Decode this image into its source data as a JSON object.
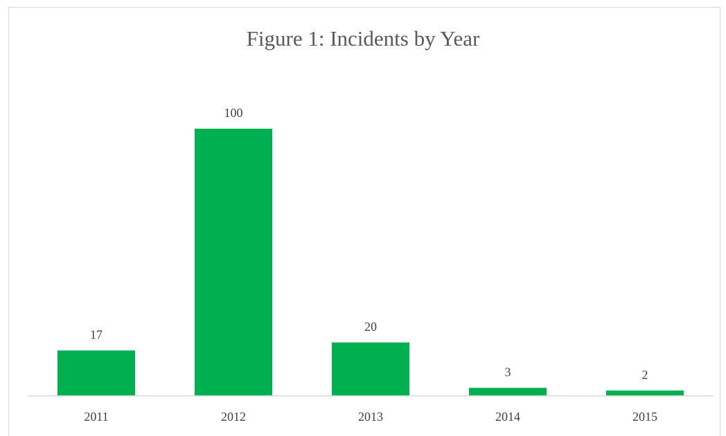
{
  "chart_data": {
    "type": "bar",
    "title": "Figure 1: Incidents by Year",
    "xlabel": "",
    "ylabel": "",
    "categories": [
      "2011",
      "2012",
      "2013",
      "2014",
      "2015"
    ],
    "values": [
      17,
      100,
      20,
      3,
      2
    ],
    "ylim": [
      0,
      100
    ],
    "grid": false,
    "legend": "none",
    "bar_color": "#00b050",
    "data_labels": true
  }
}
